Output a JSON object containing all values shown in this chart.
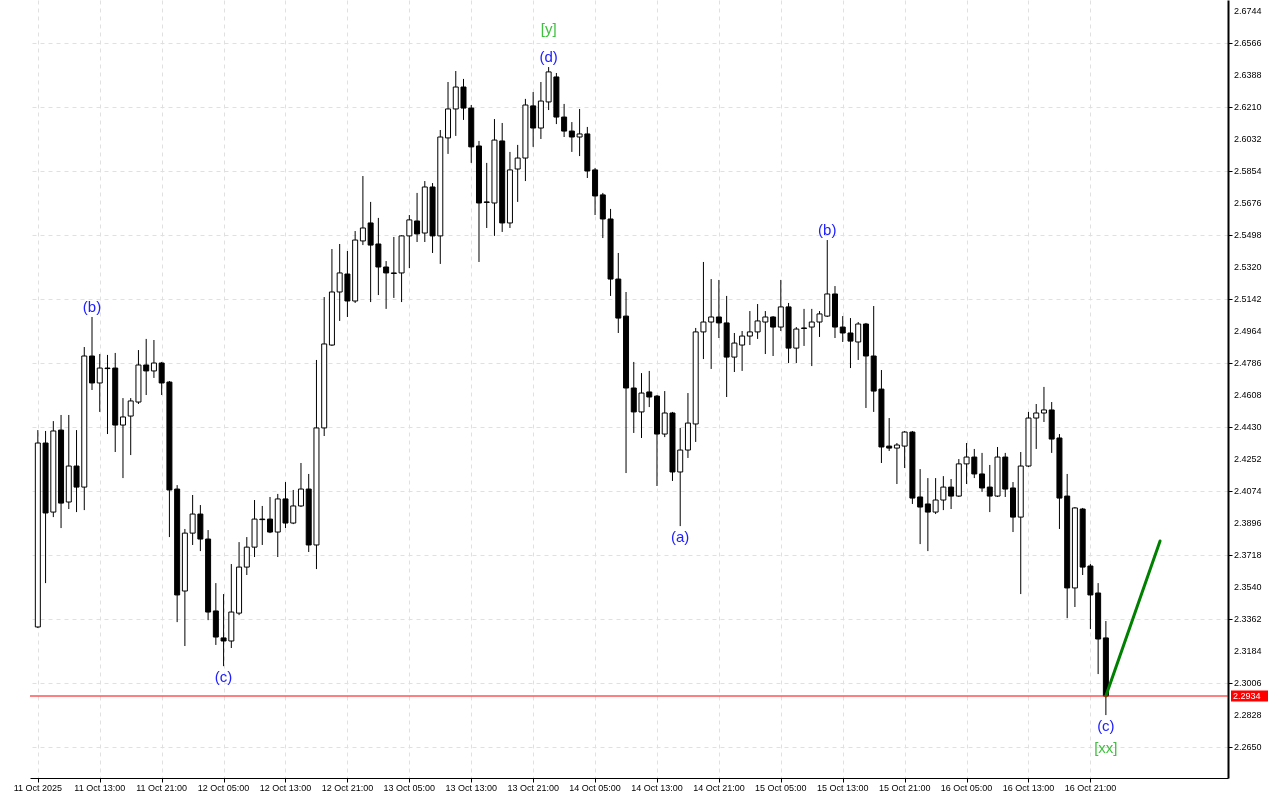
{
  "chart_data": {
    "type": "candlestick",
    "x": [
      "2025-10-11T05:00",
      "2025-10-11T06:00",
      "2025-10-11T07:00",
      "2025-10-11T08:00",
      "2025-10-11T09:00",
      "2025-10-11T10:00",
      "2025-10-11T11:00",
      "2025-10-11T12:00",
      "2025-10-11T13:00",
      "2025-10-11T14:00",
      "2025-10-11T15:00",
      "2025-10-11T16:00",
      "2025-10-11T17:00",
      "2025-10-11T18:00",
      "2025-10-11T19:00",
      "2025-10-11T20:00",
      "2025-10-11T21:00",
      "2025-10-11T22:00",
      "2025-10-11T23:00",
      "2025-10-12T00:00",
      "2025-10-12T01:00",
      "2025-10-12T02:00",
      "2025-10-12T03:00",
      "2025-10-12T04:00",
      "2025-10-12T05:00",
      "2025-10-12T06:00",
      "2025-10-12T07:00",
      "2025-10-12T08:00",
      "2025-10-12T09:00",
      "2025-10-12T10:00",
      "2025-10-12T11:00",
      "2025-10-12T12:00",
      "2025-10-12T13:00",
      "2025-10-12T14:00",
      "2025-10-12T15:00",
      "2025-10-12T16:00",
      "2025-10-12T17:00",
      "2025-10-12T18:00",
      "2025-10-12T19:00",
      "2025-10-12T20:00",
      "2025-10-12T21:00",
      "2025-10-12T22:00",
      "2025-10-12T23:00",
      "2025-10-13T00:00",
      "2025-10-13T01:00",
      "2025-10-13T02:00",
      "2025-10-13T03:00",
      "2025-10-13T04:00",
      "2025-10-13T05:00",
      "2025-10-13T06:00",
      "2025-10-13T07:00",
      "2025-10-13T08:00",
      "2025-10-13T09:00",
      "2025-10-13T10:00",
      "2025-10-13T11:00",
      "2025-10-13T12:00",
      "2025-10-13T13:00",
      "2025-10-13T14:00",
      "2025-10-13T15:00",
      "2025-10-13T16:00",
      "2025-10-13T17:00",
      "2025-10-13T18:00",
      "2025-10-13T19:00",
      "2025-10-13T20:00",
      "2025-10-13T21:00",
      "2025-10-13T22:00",
      "2025-10-13T23:00",
      "2025-10-14T00:00",
      "2025-10-14T01:00",
      "2025-10-14T02:00",
      "2025-10-14T03:00",
      "2025-10-14T04:00",
      "2025-10-14T05:00",
      "2025-10-14T06:00",
      "2025-10-14T07:00",
      "2025-10-14T08:00",
      "2025-10-14T09:00",
      "2025-10-14T10:00",
      "2025-10-14T11:00",
      "2025-10-14T12:00",
      "2025-10-14T13:00",
      "2025-10-14T14:00",
      "2025-10-14T15:00",
      "2025-10-14T16:00",
      "2025-10-14T17:00",
      "2025-10-14T18:00",
      "2025-10-14T19:00",
      "2025-10-14T20:00",
      "2025-10-14T21:00",
      "2025-10-14T22:00",
      "2025-10-14T23:00",
      "2025-10-15T00:00",
      "2025-10-15T01:00",
      "2025-10-15T02:00",
      "2025-10-15T03:00",
      "2025-10-15T04:00",
      "2025-10-15T05:00",
      "2025-10-15T06:00",
      "2025-10-15T07:00",
      "2025-10-15T08:00",
      "2025-10-15T09:00",
      "2025-10-15T10:00",
      "2025-10-15T11:00",
      "2025-10-15T12:00",
      "2025-10-15T13:00",
      "2025-10-15T14:00",
      "2025-10-15T15:00",
      "2025-10-15T16:00",
      "2025-10-15T17:00",
      "2025-10-15T18:00",
      "2025-10-15T19:00",
      "2025-10-15T20:00",
      "2025-10-15T21:00",
      "2025-10-15T22:00",
      "2025-10-15T23:00",
      "2025-10-16T00:00",
      "2025-10-16T01:00",
      "2025-10-16T02:00",
      "2025-10-16T03:00",
      "2025-10-16T04:00",
      "2025-10-16T05:00",
      "2025-10-16T06:00",
      "2025-10-16T07:00",
      "2025-10-16T08:00",
      "2025-10-16T09:00",
      "2025-10-16T10:00",
      "2025-10-16T11:00",
      "2025-10-16T12:00",
      "2025-10-16T13:00",
      "2025-10-16T14:00",
      "2025-10-16T15:00",
      "2025-10-16T16:00",
      "2025-10-16T17:00",
      "2025-10-16T18:00",
      "2025-10-16T19:00",
      "2025-10-16T20:00",
      "2025-10-16T21:00",
      "2025-10-16T22:00",
      "2025-10-16T23:00"
    ],
    "ohlc": [
      [
        2.3318,
        2.4413,
        2.3312,
        2.4341
      ],
      [
        2.4341,
        2.4408,
        2.3562,
        2.3952
      ],
      [
        2.3957,
        2.4463,
        2.3929,
        2.4408
      ],
      [
        2.4413,
        2.4497,
        2.3868,
        2.4007
      ],
      [
        2.4013,
        2.4497,
        2.3974,
        2.4213
      ],
      [
        2.4213,
        2.4413,
        2.3957,
        2.4096
      ],
      [
        2.4096,
        2.4875,
        2.3968,
        2.4825
      ],
      [
        2.4825,
        2.5042,
        2.4636,
        2.4675
      ],
      [
        2.4675,
        2.4836,
        2.4514,
        2.4758
      ],
      [
        2.4758,
        2.4831,
        2.4391,
        2.4755
      ],
      [
        2.4758,
        2.4842,
        2.4291,
        2.4441
      ],
      [
        2.4441,
        2.4591,
        2.4146,
        2.4486
      ],
      [
        2.4491,
        2.4591,
        2.4274,
        2.4575
      ],
      [
        2.4569,
        2.4858,
        2.4558,
        2.4775
      ],
      [
        2.4775,
        2.492,
        2.4608,
        2.4742
      ],
      [
        2.4742,
        2.4914,
        2.4703,
        2.4786
      ],
      [
        2.4786,
        2.4792,
        2.4608,
        2.4675
      ],
      [
        2.468,
        2.4686,
        2.3818,
        2.408
      ],
      [
        2.4085,
        2.4107,
        2.3345,
        2.3496
      ],
      [
        2.3518,
        2.3863,
        2.3212,
        2.384
      ],
      [
        2.384,
        2.4052,
        2.3774,
        2.3946
      ],
      [
        2.3946,
        2.3996,
        2.374,
        2.3807
      ],
      [
        2.3807,
        2.3857,
        2.3356,
        2.3401
      ],
      [
        2.3407,
        2.3562,
        2.3218,
        2.3262
      ],
      [
        2.3257,
        2.3501,
        2.31,
        2.324
      ],
      [
        2.324,
        2.3668,
        2.3201,
        2.3401
      ],
      [
        2.3395,
        2.379,
        2.3384,
        2.3651
      ],
      [
        2.3651,
        2.3818,
        2.3607,
        2.3762
      ],
      [
        2.3762,
        2.4024,
        2.3707,
        2.3918
      ],
      [
        2.3918,
        2.3991,
        2.3774,
        2.3915
      ],
      [
        2.3918,
        2.4041,
        2.384,
        2.3846
      ],
      [
        2.3846,
        2.4058,
        2.3707,
        2.403
      ],
      [
        2.403,
        2.4124,
        2.3868,
        2.3896
      ],
      [
        2.3896,
        2.408,
        2.389,
        2.3991
      ],
      [
        2.3991,
        2.423,
        2.3985,
        2.4085
      ],
      [
        2.4085,
        2.4169,
        2.3735,
        2.3774
      ],
      [
        2.3774,
        2.4803,
        2.364,
        2.4425
      ],
      [
        2.4425,
        2.5153,
        2.438,
        2.4892
      ],
      [
        2.4886,
        2.542,
        2.4881,
        2.5181
      ],
      [
        2.5181,
        2.5448,
        2.502,
        2.5287
      ],
      [
        2.5281,
        2.5409,
        2.5042,
        2.5131
      ],
      [
        2.5131,
        2.552,
        2.512,
        2.547
      ],
      [
        2.5465,
        2.5826,
        2.5442,
        2.5537
      ],
      [
        2.5565,
        2.5682,
        2.5125,
        2.5442
      ],
      [
        2.5448,
        2.5593,
        2.5164,
        2.532
      ],
      [
        2.532,
        2.5353,
        2.5087,
        2.5287
      ],
      [
        2.5287,
        2.5487,
        2.5148,
        2.5284
      ],
      [
        2.5287,
        2.5496,
        2.5125,
        2.5493
      ],
      [
        2.5493,
        2.5609,
        2.5314,
        2.5582
      ],
      [
        2.5576,
        2.5732,
        2.5459,
        2.5504
      ],
      [
        2.5509,
        2.5798,
        2.5459,
        2.5765
      ],
      [
        2.5765,
        2.5787,
        2.5398,
        2.5493
      ],
      [
        2.5493,
        2.6082,
        2.5337,
        2.6043
      ],
      [
        2.6038,
        2.6349,
        2.5949,
        2.6199
      ],
      [
        2.6199,
        2.641,
        2.6049,
        2.6321
      ],
      [
        2.6321,
        2.6366,
        2.6138,
        2.6204
      ],
      [
        2.6204,
        2.6221,
        2.5899,
        2.5988
      ],
      [
        2.5993,
        2.6021,
        2.5348,
        2.5676
      ],
      [
        2.5682,
        2.5899,
        2.5537,
        2.5679
      ],
      [
        2.5676,
        2.6143,
        2.5493,
        2.6026
      ],
      [
        2.6021,
        2.6121,
        2.5515,
        2.5565
      ],
      [
        2.5565,
        2.596,
        2.5537,
        2.586
      ],
      [
        2.5865,
        2.5999,
        2.5682,
        2.5926
      ],
      [
        2.5926,
        2.6255,
        2.5798,
        2.6221
      ],
      [
        2.6216,
        2.6293,
        2.5988,
        2.6093
      ],
      [
        2.6093,
        2.6349,
        2.6032,
        2.6243
      ],
      [
        2.6238,
        2.6432,
        2.6193,
        2.6405
      ],
      [
        2.6377,
        2.6399,
        2.6115,
        2.6154
      ],
      [
        2.6154,
        2.6227,
        2.6043,
        2.6076
      ],
      [
        2.6076,
        2.6126,
        2.596,
        2.6043
      ],
      [
        2.6043,
        2.6199,
        2.5937,
        2.606
      ],
      [
        2.606,
        2.6099,
        2.5815,
        2.5854
      ],
      [
        2.586,
        2.5871,
        2.5609,
        2.5715
      ],
      [
        2.5721,
        2.5732,
        2.5481,
        2.5587
      ],
      [
        2.5587,
        2.5643,
        2.5159,
        2.5253
      ],
      [
        2.5253,
        2.5398,
        2.4953,
        2.5036
      ],
      [
        2.5047,
        2.5181,
        2.4174,
        2.4647
      ],
      [
        2.4647,
        2.4792,
        2.4397,
        2.4514
      ],
      [
        2.4514,
        2.473,
        2.4369,
        2.4619
      ],
      [
        2.4625,
        2.4742,
        2.4541,
        2.4597
      ],
      [
        2.4602,
        2.4608,
        2.4102,
        2.4391
      ],
      [
        2.4391,
        2.463,
        2.4374,
        2.4508
      ],
      [
        2.4508,
        2.4514,
        2.413,
        2.418
      ],
      [
        2.418,
        2.4425,
        2.3879,
        2.4302
      ],
      [
        2.4302,
        2.4619,
        2.4258,
        2.4452
      ],
      [
        2.4447,
        2.4981,
        2.4347,
        2.4959
      ],
      [
        2.4959,
        2.5348,
        2.4808,
        2.5014
      ],
      [
        2.5014,
        2.5253,
        2.4753,
        2.5042
      ],
      [
        2.5042,
        2.5248,
        2.4925,
        2.5009
      ],
      [
        2.5009,
        2.5159,
        2.4597,
        2.4819
      ],
      [
        2.4819,
        2.4953,
        2.4736,
        2.4897
      ],
      [
        2.4886,
        2.4964,
        2.4742,
        2.4936
      ],
      [
        2.4936,
        2.5075,
        2.4886,
        2.4959
      ],
      [
        2.4959,
        2.5114,
        2.492,
        2.502
      ],
      [
        2.5014,
        2.5075,
        2.4836,
        2.5042
      ],
      [
        2.5042,
        2.5047,
        2.4825,
        2.4986
      ],
      [
        2.4986,
        2.5248,
        2.4964,
        2.5098
      ],
      [
        2.5098,
        2.512,
        2.4786,
        2.4869
      ],
      [
        2.4869,
        2.4986,
        2.4786,
        2.4975
      ],
      [
        2.4981,
        2.5087,
        2.4881,
        2.4978
      ],
      [
        2.4986,
        2.5087,
        2.4769,
        2.5014
      ],
      [
        2.5014,
        2.5075,
        2.4931,
        2.5059
      ],
      [
        2.5047,
        2.547,
        2.5042,
        2.517
      ],
      [
        2.517,
        2.5214,
        2.4925,
        2.4986
      ],
      [
        2.4986,
        2.5047,
        2.4903,
        2.4953
      ],
      [
        2.4953,
        2.5036,
        2.4758,
        2.4908
      ],
      [
        2.4903,
        2.5014,
        2.4803,
        2.5003
      ],
      [
        2.5003,
        2.5009,
        2.4536,
        2.4825
      ],
      [
        2.4825,
        2.5103,
        2.4514,
        2.463
      ],
      [
        2.4641,
        2.4747,
        2.423,
        2.4319
      ],
      [
        2.4324,
        2.448,
        2.4297,
        2.4313
      ],
      [
        2.4313,
        2.4341,
        2.4113,
        2.433
      ],
      [
        2.4324,
        2.4408,
        2.4202,
        2.4402
      ],
      [
        2.4402,
        2.4408,
        2.4002,
        2.4035
      ],
      [
        2.4041,
        2.4196,
        2.3779,
        2.3985
      ],
      [
        2.4002,
        2.4146,
        2.374,
        2.3957
      ],
      [
        2.3957,
        2.4146,
        2.3946,
        2.4024
      ],
      [
        2.4024,
        2.4157,
        2.3968,
        2.4096
      ],
      [
        2.4096,
        2.4141,
        2.3974,
        2.4046
      ],
      [
        2.4046,
        2.4252,
        2.4041,
        2.4225
      ],
      [
        2.4225,
        2.4341,
        2.4113,
        2.4263
      ],
      [
        2.4263,
        2.4308,
        2.4146,
        2.4169
      ],
      [
        2.4169,
        2.4286,
        2.4069,
        2.4091
      ],
      [
        2.4096,
        2.4219,
        2.3957,
        2.4046
      ],
      [
        2.4046,
        2.4319,
        2.4041,
        2.4263
      ],
      [
        2.4263,
        2.4286,
        2.4041,
        2.4085
      ],
      [
        2.4091,
        2.4124,
        2.3846,
        2.3929
      ],
      [
        2.3929,
        2.4291,
        2.3501,
        2.4213
      ],
      [
        2.4213,
        2.4514,
        2.4208,
        2.448
      ],
      [
        2.448,
        2.4558,
        2.4308,
        2.4508
      ],
      [
        2.4508,
        2.4653,
        2.4458,
        2.4525
      ],
      [
        2.4525,
        2.4569,
        2.4286,
        2.4363
      ],
      [
        2.4369,
        2.4391,
        2.3863,
        2.4035
      ],
      [
        2.4046,
        2.4169,
        2.3367,
        2.3535
      ],
      [
        2.3535,
        2.3985,
        2.3429,
        2.398
      ],
      [
        2.3974,
        2.398,
        2.3607,
        2.3651
      ],
      [
        2.3657,
        2.3668,
        2.3306,
        2.3496
      ],
      [
        2.3507,
        2.3562,
        2.3056,
        2.3251
      ],
      [
        2.3257,
        2.3351,
        2.2828,
        2.2934
      ]
    ],
    "series": [
      {
        "type": "line",
        "x": [
          "2025-10-16T23:00",
          "2025-10-17T06:00"
        ],
        "values": [
          2.2934,
          2.3796
        ],
        "color": "#008000"
      }
    ],
    "ref_lines": [
      {
        "axis": "y",
        "value": 2.2934,
        "label": "2.2934",
        "color": "#ff0000"
      }
    ],
    "annotations": [
      {
        "text": "(b)",
        "x": "2025-10-11T12:00",
        "y": 2.5042
      },
      {
        "text": "(c)",
        "x": "2025-10-12T05:00",
        "y": 2.31
      },
      {
        "text": "(d)",
        "x": "2025-10-13T23:00",
        "y": 2.6432
      },
      {
        "text": "[y]",
        "x": "2025-10-13T23:00",
        "y": 2.6432
      },
      {
        "text": "(a)",
        "x": "2025-10-14T16:00",
        "y": 2.3879
      },
      {
        "text": "(b)",
        "x": "2025-10-15T11:00",
        "y": 2.547
      },
      {
        "text": "(c)",
        "x": "2025-10-16T23:00",
        "y": 2.2828
      },
      {
        "text": "[xx]",
        "x": "2025-10-16T23:00",
        "y": 2.2828
      }
    ],
    "xlim": [
      "2025-10-11T04:38",
      "2025-10-17T14:08"
    ],
    "xticks": [
      {
        "value": "2025-10-11T05:00",
        "label": "11 Oct 2025"
      },
      {
        "value": "2025-10-11T13:00",
        "label": "11 Oct 13:00"
      },
      {
        "value": "2025-10-11T21:00",
        "label": "11 Oct 21:00"
      },
      {
        "value": "2025-10-12T05:00",
        "label": "12 Oct 05:00"
      },
      {
        "value": "2025-10-12T13:00",
        "label": "12 Oct 13:00"
      },
      {
        "value": "2025-10-12T21:00",
        "label": "12 Oct 21:00"
      },
      {
        "value": "2025-10-13T05:00",
        "label": "13 Oct 05:00"
      },
      {
        "value": "2025-10-13T13:00",
        "label": "13 Oct 13:00"
      },
      {
        "value": "2025-10-13T21:00",
        "label": "13 Oct 21:00"
      },
      {
        "value": "2025-10-14T05:00",
        "label": "14 Oct 05:00"
      },
      {
        "value": "2025-10-14T13:00",
        "label": "14 Oct 13:00"
      },
      {
        "value": "2025-10-14T21:00",
        "label": "14 Oct 21:00"
      },
      {
        "value": "2025-10-15T05:00",
        "label": "15 Oct 05:00"
      },
      {
        "value": "2025-10-15T13:00",
        "label": "15 Oct 13:00"
      },
      {
        "value": "2025-10-15T21:00",
        "label": "15 Oct 21:00"
      },
      {
        "value": "2025-10-16T05:00",
        "label": "16 Oct 05:00"
      },
      {
        "value": "2025-10-16T13:00",
        "label": "16 Oct 13:00"
      },
      {
        "value": "2025-10-16T21:00",
        "label": "16 Oct 21:00"
      }
    ],
    "ylim": [
      2.2478,
      2.6805
    ],
    "yticks": [
      {
        "value": 2.265,
        "label": "2.2650"
      },
      2.2828,
      2.3006,
      2.3184,
      2.3362,
      {
        "value": 2.354,
        "label": "2.3540"
      },
      2.3718,
      2.3896,
      2.4074,
      2.4252,
      {
        "value": 2.443,
        "label": "2.4430"
      },
      2.4608,
      2.4786,
      2.4964,
      2.5142,
      {
        "value": 2.532,
        "label": "2.5320"
      },
      2.5498,
      2.5676,
      2.5854,
      2.6032,
      {
        "value": 2.621,
        "label": "2.6210"
      },
      2.6388,
      2.6566,
      2.6744
    ],
    "grid": true
  }
}
